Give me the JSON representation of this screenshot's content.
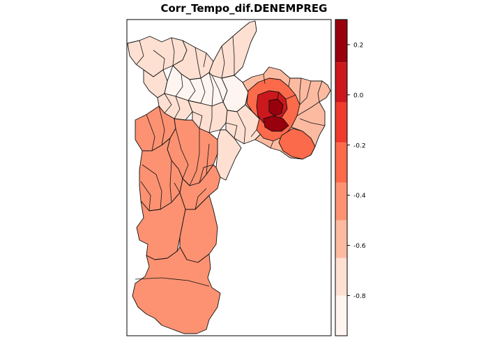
{
  "title": "Corr_Tempo_dif.DENEMPREG",
  "legend": {
    "ticks": [
      {
        "value": 0.2,
        "label": "0.2"
      },
      {
        "value": 0.0,
        "label": "0.0"
      },
      {
        "value": -0.2,
        "label": "-0.2"
      },
      {
        "value": -0.4,
        "label": "-0.4"
      },
      {
        "value": -0.6,
        "label": "-0.6"
      },
      {
        "value": -0.8,
        "label": "-0.8"
      }
    ],
    "bins": [
      {
        "from": -0.96,
        "to": -0.8,
        "color": "#fff5f0"
      },
      {
        "from": -0.8,
        "to": -0.65,
        "color": "#fee0d2"
      },
      {
        "from": -0.65,
        "to": -0.5,
        "color": "#fcbba1"
      },
      {
        "from": -0.5,
        "to": -0.35,
        "color": "#fc9272"
      },
      {
        "from": -0.35,
        "to": -0.19,
        "color": "#fb6a4a"
      },
      {
        "from": -0.19,
        "to": -0.03,
        "color": "#ef3b2c"
      },
      {
        "from": -0.03,
        "to": 0.13,
        "color": "#cb181d"
      },
      {
        "from": 0.13,
        "to": 0.3,
        "color": "#99000d"
      }
    ],
    "range": [
      -0.96,
      0.3
    ]
  },
  "map": {
    "regions": {
      "north": "#fee0d2",
      "center": "#fff5f0",
      "center_ring": "#fee0d2",
      "west_south": "#fc9272",
      "south": "#fc9272",
      "east": "#fcbba1",
      "east_ring": "#fb6a4a",
      "east_core": "#cb181d",
      "east_hotspot": "#99000d"
    }
  }
}
